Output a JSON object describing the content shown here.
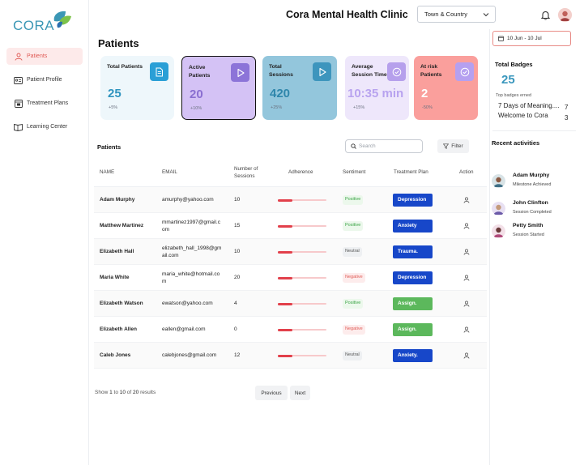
{
  "brand": {
    "logo_text": "CORA",
    "logo_colors": [
      "#3b97b5",
      "#7cc24a",
      "#2a6fb0"
    ]
  },
  "header": {
    "clinic_title": "Cora Mental Health Clinic",
    "region": "Town & Country"
  },
  "sidebar": {
    "items": [
      {
        "label": "Patients",
        "icon": "user-icon",
        "active": true
      },
      {
        "label": "Patient Profile",
        "icon": "id-card-icon",
        "active": false
      },
      {
        "label": "Treatment Plans",
        "icon": "calendar-icon",
        "active": false
      },
      {
        "label": "Learning Center",
        "icon": "book-icon",
        "active": false
      }
    ]
  },
  "main": {
    "page_title": "Patients",
    "stats": [
      {
        "label": "Total Patients",
        "value": "25",
        "change": "+5%",
        "bg": "#eef7fb",
        "value_color": "#2f94bf",
        "icon_bg": "#2a9fd6",
        "icon": "document-icon"
      },
      {
        "label": "Active Patients",
        "value": "20",
        "change": "+10%",
        "bg": "#d4c2f5",
        "value_color": "#8a6fd1",
        "icon_bg": "#8c74d8",
        "icon": "play-icon"
      },
      {
        "label": "Total Sessions",
        "value": "420",
        "change": "+25%",
        "bg": "#93c6dc",
        "value_color": "#2f86ab",
        "icon_bg": "#3d95bd",
        "icon": "play-icon"
      },
      {
        "label": "Average Session Time",
        "value": "10:35 min",
        "change": "+15%",
        "bg": "#eee7fb",
        "value_color": "#b8a3ef",
        "icon_bg": "#b6a0ec",
        "icon": "check-circle-icon"
      },
      {
        "label": "At risk Patients",
        "value": "2",
        "change": "-50%",
        "bg": "#fa9f9c",
        "value_color": "#ffffff",
        "icon_bg": "#b5a0f0",
        "icon": "check-circle-icon"
      }
    ],
    "table": {
      "title": "Patients",
      "search_placeholder": "Search",
      "filter_label": "Filter",
      "columns": [
        "NAME",
        "EMAIL",
        "Number of Sessions",
        "Adherence",
        "Sentiment",
        "Treatment Plan",
        "Action"
      ],
      "rows": [
        {
          "name": "Adam Murphy",
          "email": "amurphy@yahoo.com",
          "sessions": "10",
          "adherence": 0.3,
          "sentiment": "Positive",
          "plan": "Depression",
          "plan_color": "#1747c9"
        },
        {
          "name": "Matthew Martinez",
          "email": "mmartinez1997@gmail.com",
          "sessions": "15",
          "adherence": 0.3,
          "sentiment": "Positive",
          "plan": "Anxiety",
          "plan_color": "#1747c9"
        },
        {
          "name": "Elizabeth Hall",
          "email": "elizabeth_hall_1998@gmail.com",
          "sessions": "10",
          "adherence": 0.3,
          "sentiment": "Neutral",
          "plan": "Trauma.",
          "plan_color": "#1747c9"
        },
        {
          "name": "Maria White",
          "email": "maria_white@hotmail.com",
          "sessions": "20",
          "adherence": 0.3,
          "sentiment": "Negative",
          "plan": "Depression",
          "plan_color": "#1747c9"
        },
        {
          "name": "Elizabeth Watson",
          "email": "ewatson@yahoo.com",
          "sessions": "4",
          "adherence": 0.3,
          "sentiment": "Positive",
          "plan": "Assign.",
          "plan_color": "#5cb85c"
        },
        {
          "name": "Elizabeth Allen",
          "email": "eallen@gmail.com",
          "sessions": "0",
          "adherence": 0.3,
          "sentiment": "Negative",
          "plan": "Assign.",
          "plan_color": "#5cb85c"
        },
        {
          "name": "Caleb Jones",
          "email": "calebjones@gmail.com",
          "sessions": "12",
          "adherence": 0.3,
          "sentiment": "Neutral",
          "plan": "Anxiety.",
          "plan_color": "#1747c9"
        }
      ],
      "footer": {
        "show_label": "Show",
        "from": "1",
        "to_label": "to",
        "to": "10",
        "of_label": "of",
        "total": "20",
        "results_label": "results"
      },
      "pagination": {
        "previous": "Previous",
        "next": "Next"
      }
    }
  },
  "right_panel": {
    "date_range": "10 Jun - 10 Jul",
    "badges_title": "Total Badges",
    "badges_count": "25",
    "badges_sub": "Top badges erned",
    "badges": [
      {
        "name": "7 Days of Meaning....",
        "count": "7"
      },
      {
        "name": "Welcome to Cora",
        "count": "3"
      }
    ],
    "recent_title": "Recent activities",
    "activities": [
      {
        "name": "Adam Murphy",
        "status": "Milestone Achieved"
      },
      {
        "name": "John Clinfton",
        "status": "Session Completed"
      },
      {
        "name": "Petty Smith",
        "status": "Session Started"
      }
    ]
  }
}
